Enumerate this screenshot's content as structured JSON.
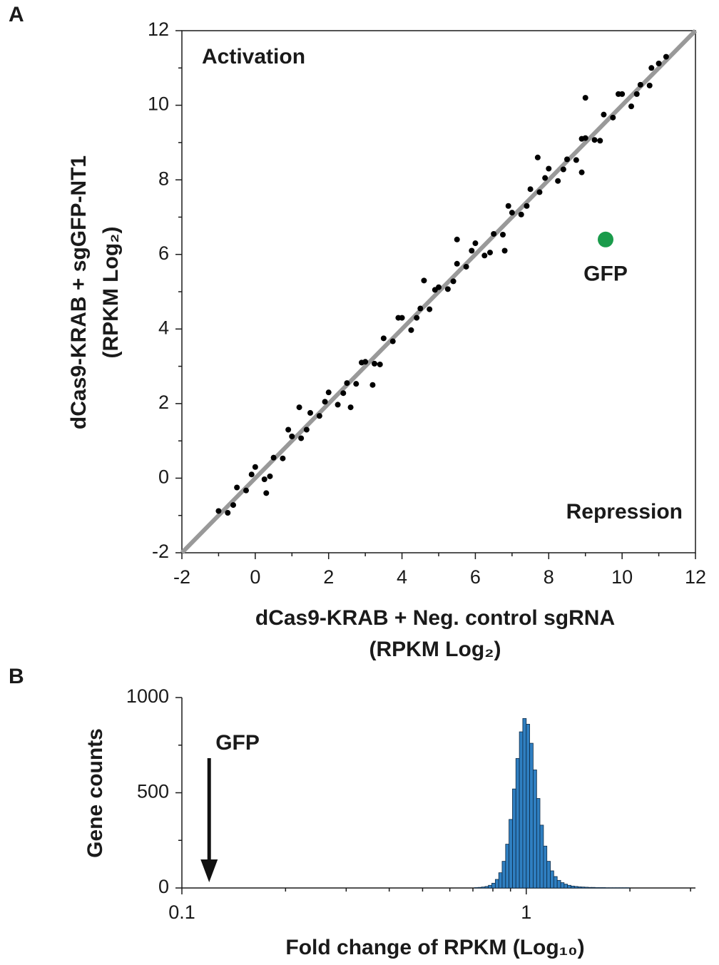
{
  "panels": [
    "A",
    "B"
  ],
  "chart_data": [
    {
      "type": "scatter",
      "xlabel": [
        "dCas9-KRAB + Neg. control sgRNA",
        "(RPKM Log₂)"
      ],
      "ylabel": [
        "dCas9-KRAB + sgGFP-NT1",
        "(RPKM Log₂)"
      ],
      "annotations": [
        "Activation",
        "Repression"
      ],
      "xlim": [
        -2,
        12
      ],
      "ylim": [
        -2,
        12
      ],
      "xticks": [
        -2,
        0,
        2,
        4,
        6,
        8,
        10,
        12
      ],
      "yticks": [
        -2,
        0,
        2,
        4,
        6,
        8,
        10,
        12
      ],
      "minor_xticks": [
        -1,
        1,
        3,
        5,
        7,
        9,
        11
      ],
      "minor_yticks": [
        -1,
        1,
        3,
        5,
        7,
        9,
        11
      ],
      "diagonal_color": "#999999",
      "series": [
        {
          "color": "#000000",
          "x": [
            -1.0,
            -0.75,
            -0.5,
            -0.25,
            0,
            0.25,
            0.5,
            0.75,
            1.0,
            1.25,
            1.5,
            1.75,
            2.0,
            2.25,
            2.5,
            2.75,
            3.0,
            3.25,
            3.5,
            3.75,
            4.0,
            4.25,
            4.5,
            4.75,
            5.0,
            5.25,
            5.5,
            5.75,
            6.0,
            6.25,
            6.5,
            6.75,
            7.0,
            7.25,
            7.5,
            7.75,
            8.0,
            8.25,
            8.5,
            8.75,
            9.0,
            9.25,
            9.5,
            9.75,
            10.0,
            10.25,
            10.5,
            10.75,
            11.0,
            -0.6,
            -0.1,
            0.4,
            0.9,
            1.4,
            1.9,
            2.4,
            2.9,
            3.4,
            3.9,
            4.4,
            4.9,
            5.4,
            5.9,
            6.4,
            6.9,
            7.4,
            7.9,
            8.4,
            8.9,
            9.4,
            9.9,
            10.4,
            0.3,
            1.2,
            3.2,
            5.5,
            7.7,
            9.0,
            10.8,
            11.2,
            6.8,
            4.6,
            2.6,
            8.9
          ],
          "y": [
            -0.88,
            -0.93,
            -0.25,
            -0.33,
            0.3,
            -0.03,
            0.55,
            0.53,
            1.12,
            1.07,
            1.75,
            1.67,
            2.3,
            1.97,
            2.55,
            2.53,
            3.12,
            3.07,
            3.75,
            3.67,
            4.3,
            3.97,
            4.55,
            4.53,
            5.12,
            5.07,
            5.75,
            5.67,
            6.3,
            5.97,
            6.55,
            6.53,
            7.12,
            7.07,
            7.75,
            7.67,
            8.3,
            7.97,
            8.55,
            8.53,
            9.12,
            9.07,
            9.75,
            9.67,
            10.3,
            9.97,
            10.55,
            10.53,
            11.12,
            -0.72,
            0.1,
            0.05,
            1.3,
            1.3,
            2.05,
            2.28,
            3.1,
            3.05,
            4.3,
            4.3,
            5.05,
            5.28,
            6.1,
            6.05,
            7.3,
            7.3,
            8.05,
            8.28,
            9.1,
            9.05,
            10.3,
            10.3,
            -0.4,
            1.9,
            2.5,
            6.4,
            8.6,
            10.2,
            11.0,
            11.3,
            6.1,
            5.3,
            1.9,
            8.2
          ]
        },
        {
          "name": "GFP",
          "color": "#1a9b4b",
          "x": [
            9.55
          ],
          "y": [
            6.4
          ]
        }
      ]
    },
    {
      "type": "histogram",
      "xlabel": [
        "Fold change of RPKM (Log₁₀)"
      ],
      "ylabel": [
        "Gene counts"
      ],
      "xlog": true,
      "xlim": [
        0.1,
        3.1
      ],
      "ylim": [
        0,
        1000
      ],
      "xticks": [
        0.1,
        1
      ],
      "yticks": [
        0,
        500,
        1000
      ],
      "minor_xticks": [
        0.2,
        0.3,
        0.4,
        0.5,
        0.6,
        0.7,
        0.8,
        0.9,
        2,
        3
      ],
      "minor_yticks": [
        250,
        750
      ],
      "color": "#2f7fc1",
      "annotations": [
        {
          "text": "GFP",
          "x": 0.12
        }
      ],
      "bins": [
        0.708,
        0.724,
        0.741,
        0.759,
        0.776,
        0.794,
        0.813,
        0.832,
        0.851,
        0.871,
        0.891,
        0.912,
        0.933,
        0.955,
        0.977,
        1.0,
        1.023,
        1.047,
        1.072,
        1.096,
        1.122,
        1.148,
        1.175,
        1.202,
        1.23,
        1.259,
        1.288,
        1.318,
        1.349,
        1.38,
        1.413,
        1.445,
        1.479,
        1.514,
        1.549,
        1.585,
        1.622,
        1.66,
        1.698,
        1.738,
        1.778,
        1.82,
        1.862,
        1.905,
        1.95,
        1.995
      ],
      "values": [
        2,
        3,
        5,
        8,
        14,
        25,
        45,
        80,
        140,
        230,
        360,
        520,
        680,
        820,
        890,
        860,
        760,
        620,
        470,
        330,
        220,
        140,
        90,
        60,
        40,
        28,
        20,
        14,
        10,
        8,
        6,
        5,
        4,
        3,
        3,
        2,
        2,
        2,
        1,
        1,
        1,
        1,
        1,
        1,
        1
      ]
    }
  ]
}
